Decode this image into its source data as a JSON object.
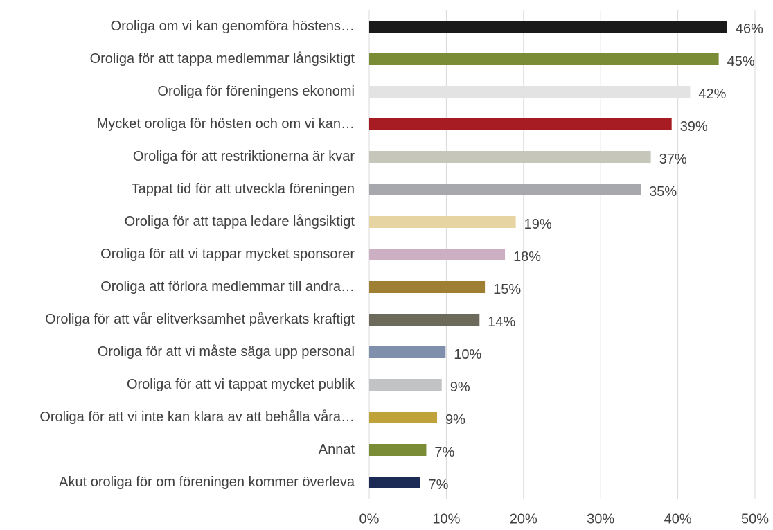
{
  "chart_data": {
    "type": "barh",
    "categories": [
      "Oroliga om vi kan genomföra höstens…",
      "Oroliga för att tappa medlemmar långsiktigt",
      "Oroliga för föreningens ekonomi",
      "Mycket oroliga för hösten och om vi kan…",
      "Oroliga för att restriktionerna är kvar",
      "Tappat tid för att utveckla föreningen",
      "Oroliga för att tappa ledare långsiktigt",
      "Oroliga för att vi tappar mycket sponsorer",
      "Oroliga att förlora medlemmar till andra…",
      "Oroliga för att vår elitverksamhet påverkats kraftigt",
      "Oroliga för att vi måste säga upp personal",
      "Oroliga för att vi tappat mycket publik",
      "Oroliga för att vi inte kan klara av att behålla våra…",
      "Annat",
      "Akut oroliga för om föreningen kommer överleva"
    ],
    "values": [
      46.4,
      45.3,
      41.6,
      39.2,
      36.5,
      35.2,
      19.0,
      17.6,
      15.0,
      14.3,
      9.9,
      9.4,
      8.8,
      7.4,
      6.6
    ],
    "value_labels": [
      "46%",
      "45%",
      "42%",
      "39%",
      "37%",
      "35%",
      "19%",
      "18%",
      "15%",
      "14%",
      "10%",
      "9%",
      "9%",
      "7%",
      "7%"
    ],
    "colors": [
      "#1a1a1a",
      "#7a8c36",
      "#e3e3e3",
      "#a71c22",
      "#c6c6bb",
      "#a6a8ad",
      "#e6d5a3",
      "#cdafc4",
      "#9f7f34",
      "#6c6a5a",
      "#7f8fac",
      "#c2c3c5",
      "#bfa239",
      "#7a8c36",
      "#1c2b55"
    ],
    "xlim": [
      0,
      50
    ],
    "xticks": [
      {
        "value": 0,
        "label": "0%"
      },
      {
        "value": 10,
        "label": "10%"
      },
      {
        "value": 20,
        "label": "20%"
      },
      {
        "value": 30,
        "label": "30%"
      },
      {
        "value": 40,
        "label": "40%"
      },
      {
        "value": 50,
        "label": "50%"
      }
    ],
    "grid": true
  }
}
